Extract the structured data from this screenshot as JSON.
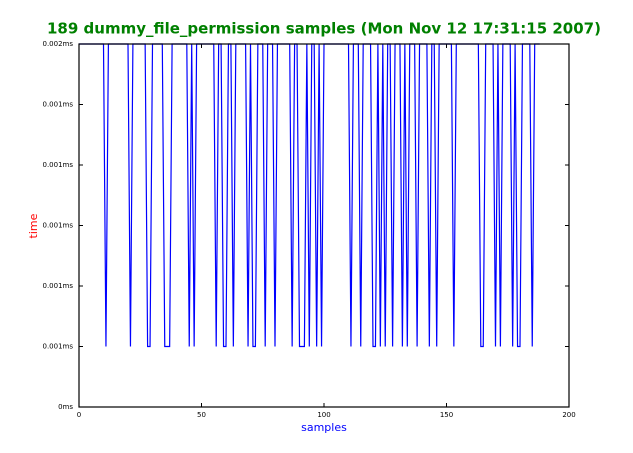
{
  "chart_data": {
    "type": "line",
    "title": "189 dummy_file_permission samples (Mon Nov 12 17:31:15 2007)",
    "x_label": "samples",
    "y_label": "time",
    "color": "#0000ff",
    "xlim": [
      0,
      200
    ],
    "xticks": [
      0,
      50,
      100,
      150,
      200
    ],
    "ylim": [
      0.0004,
      0.0016
    ],
    "yticks": [
      {
        "value": 0.0004,
        "label": "0ms"
      },
      {
        "value": 0.0006,
        "label": "0.001ms"
      },
      {
        "value": 0.0008,
        "label": "0.001ms"
      },
      {
        "value": 0.001,
        "label": "0.001ms"
      },
      {
        "value": 0.0012,
        "label": "0.001ms"
      },
      {
        "value": 0.0014,
        "label": "0.001ms"
      },
      {
        "value": 0.0016,
        "label": "0.002ms"
      }
    ],
    "x": [
      0,
      1,
      2,
      3,
      4,
      5,
      6,
      7,
      8,
      9,
      10,
      11,
      12,
      13,
      14,
      15,
      16,
      17,
      18,
      19,
      20,
      21,
      22,
      23,
      24,
      25,
      26,
      27,
      28,
      29,
      30,
      31,
      32,
      33,
      34,
      35,
      36,
      37,
      38,
      39,
      40,
      41,
      42,
      43,
      44,
      45,
      46,
      47,
      48,
      49,
      50,
      51,
      52,
      53,
      54,
      55,
      56,
      57,
      58,
      59,
      60,
      61,
      62,
      63,
      64,
      65,
      66,
      67,
      68,
      69,
      70,
      71,
      72,
      73,
      74,
      75,
      76,
      77,
      78,
      79,
      80,
      81,
      82,
      83,
      84,
      85,
      86,
      87,
      88,
      89,
      90,
      91,
      92,
      93,
      94,
      95,
      96,
      97,
      98,
      99,
      100,
      101,
      102,
      103,
      104,
      105,
      106,
      107,
      108,
      109,
      110,
      111,
      112,
      113,
      114,
      115,
      116,
      117,
      118,
      119,
      120,
      121,
      122,
      123,
      124,
      125,
      126,
      127,
      128,
      129,
      130,
      131,
      132,
      133,
      134,
      135,
      136,
      137,
      138,
      139,
      140,
      141,
      142,
      143,
      144,
      145,
      146,
      147,
      148,
      149,
      150,
      151,
      152,
      153,
      154,
      155,
      156,
      157,
      158,
      159,
      160,
      161,
      162,
      163,
      164,
      165,
      166,
      167,
      168,
      169,
      170,
      171,
      172,
      173,
      174,
      175,
      176,
      177,
      178,
      179,
      180,
      181,
      182,
      183,
      184,
      185,
      186,
      187,
      188
    ],
    "values": [
      0.0016,
      0.0016,
      0.0016,
      0.0016,
      0.0016,
      0.0016,
      0.0016,
      0.0016,
      0.0016,
      0.0016,
      0.0016,
      0.0006,
      0.0016,
      0.0016,
      0.0016,
      0.0016,
      0.0016,
      0.0016,
      0.0016,
      0.0016,
      0.0016,
      0.0006,
      0.0016,
      0.0016,
      0.0016,
      0.0016,
      0.0016,
      0.0016,
      0.0006,
      0.0006,
      0.0016,
      0.0016,
      0.0016,
      0.0016,
      0.0016,
      0.0006,
      0.0006,
      0.0006,
      0.0016,
      0.0016,
      0.0016,
      0.0016,
      0.0016,
      0.0016,
      0.0016,
      0.0006,
      0.0016,
      0.0006,
      0.0016,
      0.0016,
      0.0016,
      0.0016,
      0.0016,
      0.0016,
      0.0016,
      0.0016,
      0.0006,
      0.0016,
      0.0016,
      0.0006,
      0.0006,
      0.0016,
      0.0016,
      0.0006,
      0.0016,
      0.0016,
      0.0016,
      0.0016,
      0.0016,
      0.0006,
      0.0016,
      0.0006,
      0.0006,
      0.0016,
      0.0016,
      0.0016,
      0.0006,
      0.0016,
      0.0016,
      0.0016,
      0.0006,
      0.0016,
      0.0016,
      0.0016,
      0.0016,
      0.0016,
      0.0016,
      0.0006,
      0.0016,
      0.0016,
      0.0006,
      0.0006,
      0.0006,
      0.0016,
      0.0006,
      0.0016,
      0.0016,
      0.0006,
      0.0016,
      0.0006,
      0.0016,
      0.0016,
      0.0016,
      0.0016,
      0.0016,
      0.0016,
      0.0016,
      0.0016,
      0.0016,
      0.0016,
      0.0016,
      0.0006,
      0.0016,
      0.0016,
      0.0016,
      0.0006,
      0.0016,
      0.0016,
      0.0016,
      0.0016,
      0.0006,
      0.0006,
      0.0016,
      0.0006,
      0.0016,
      0.0006,
      0.0016,
      0.0016,
      0.0006,
      0.0016,
      0.0016,
      0.0016,
      0.0006,
      0.0016,
      0.0006,
      0.0016,
      0.0016,
      0.0016,
      0.0006,
      0.0016,
      0.0016,
      0.0016,
      0.0016,
      0.0006,
      0.0016,
      0.0016,
      0.0006,
      0.0016,
      0.0016,
      0.0016,
      0.0016,
      0.0016,
      0.0016,
      0.0006,
      0.0016,
      0.0016,
      0.0016,
      0.0016,
      0.0016,
      0.0016,
      0.0016,
      0.0016,
      0.0016,
      0.0016,
      0.0006,
      0.0006,
      0.0016,
      0.0016,
      0.0016,
      0.0016,
      0.0006,
      0.0016,
      0.0006,
      0.0016,
      0.0016,
      0.0016,
      0.0016,
      0.0006,
      0.0016,
      0.0006,
      0.0006,
      0.0016,
      0.0016,
      0.0016,
      0.0016,
      0.0006,
      0.0016,
      0.0016,
      0.0016
    ]
  }
}
